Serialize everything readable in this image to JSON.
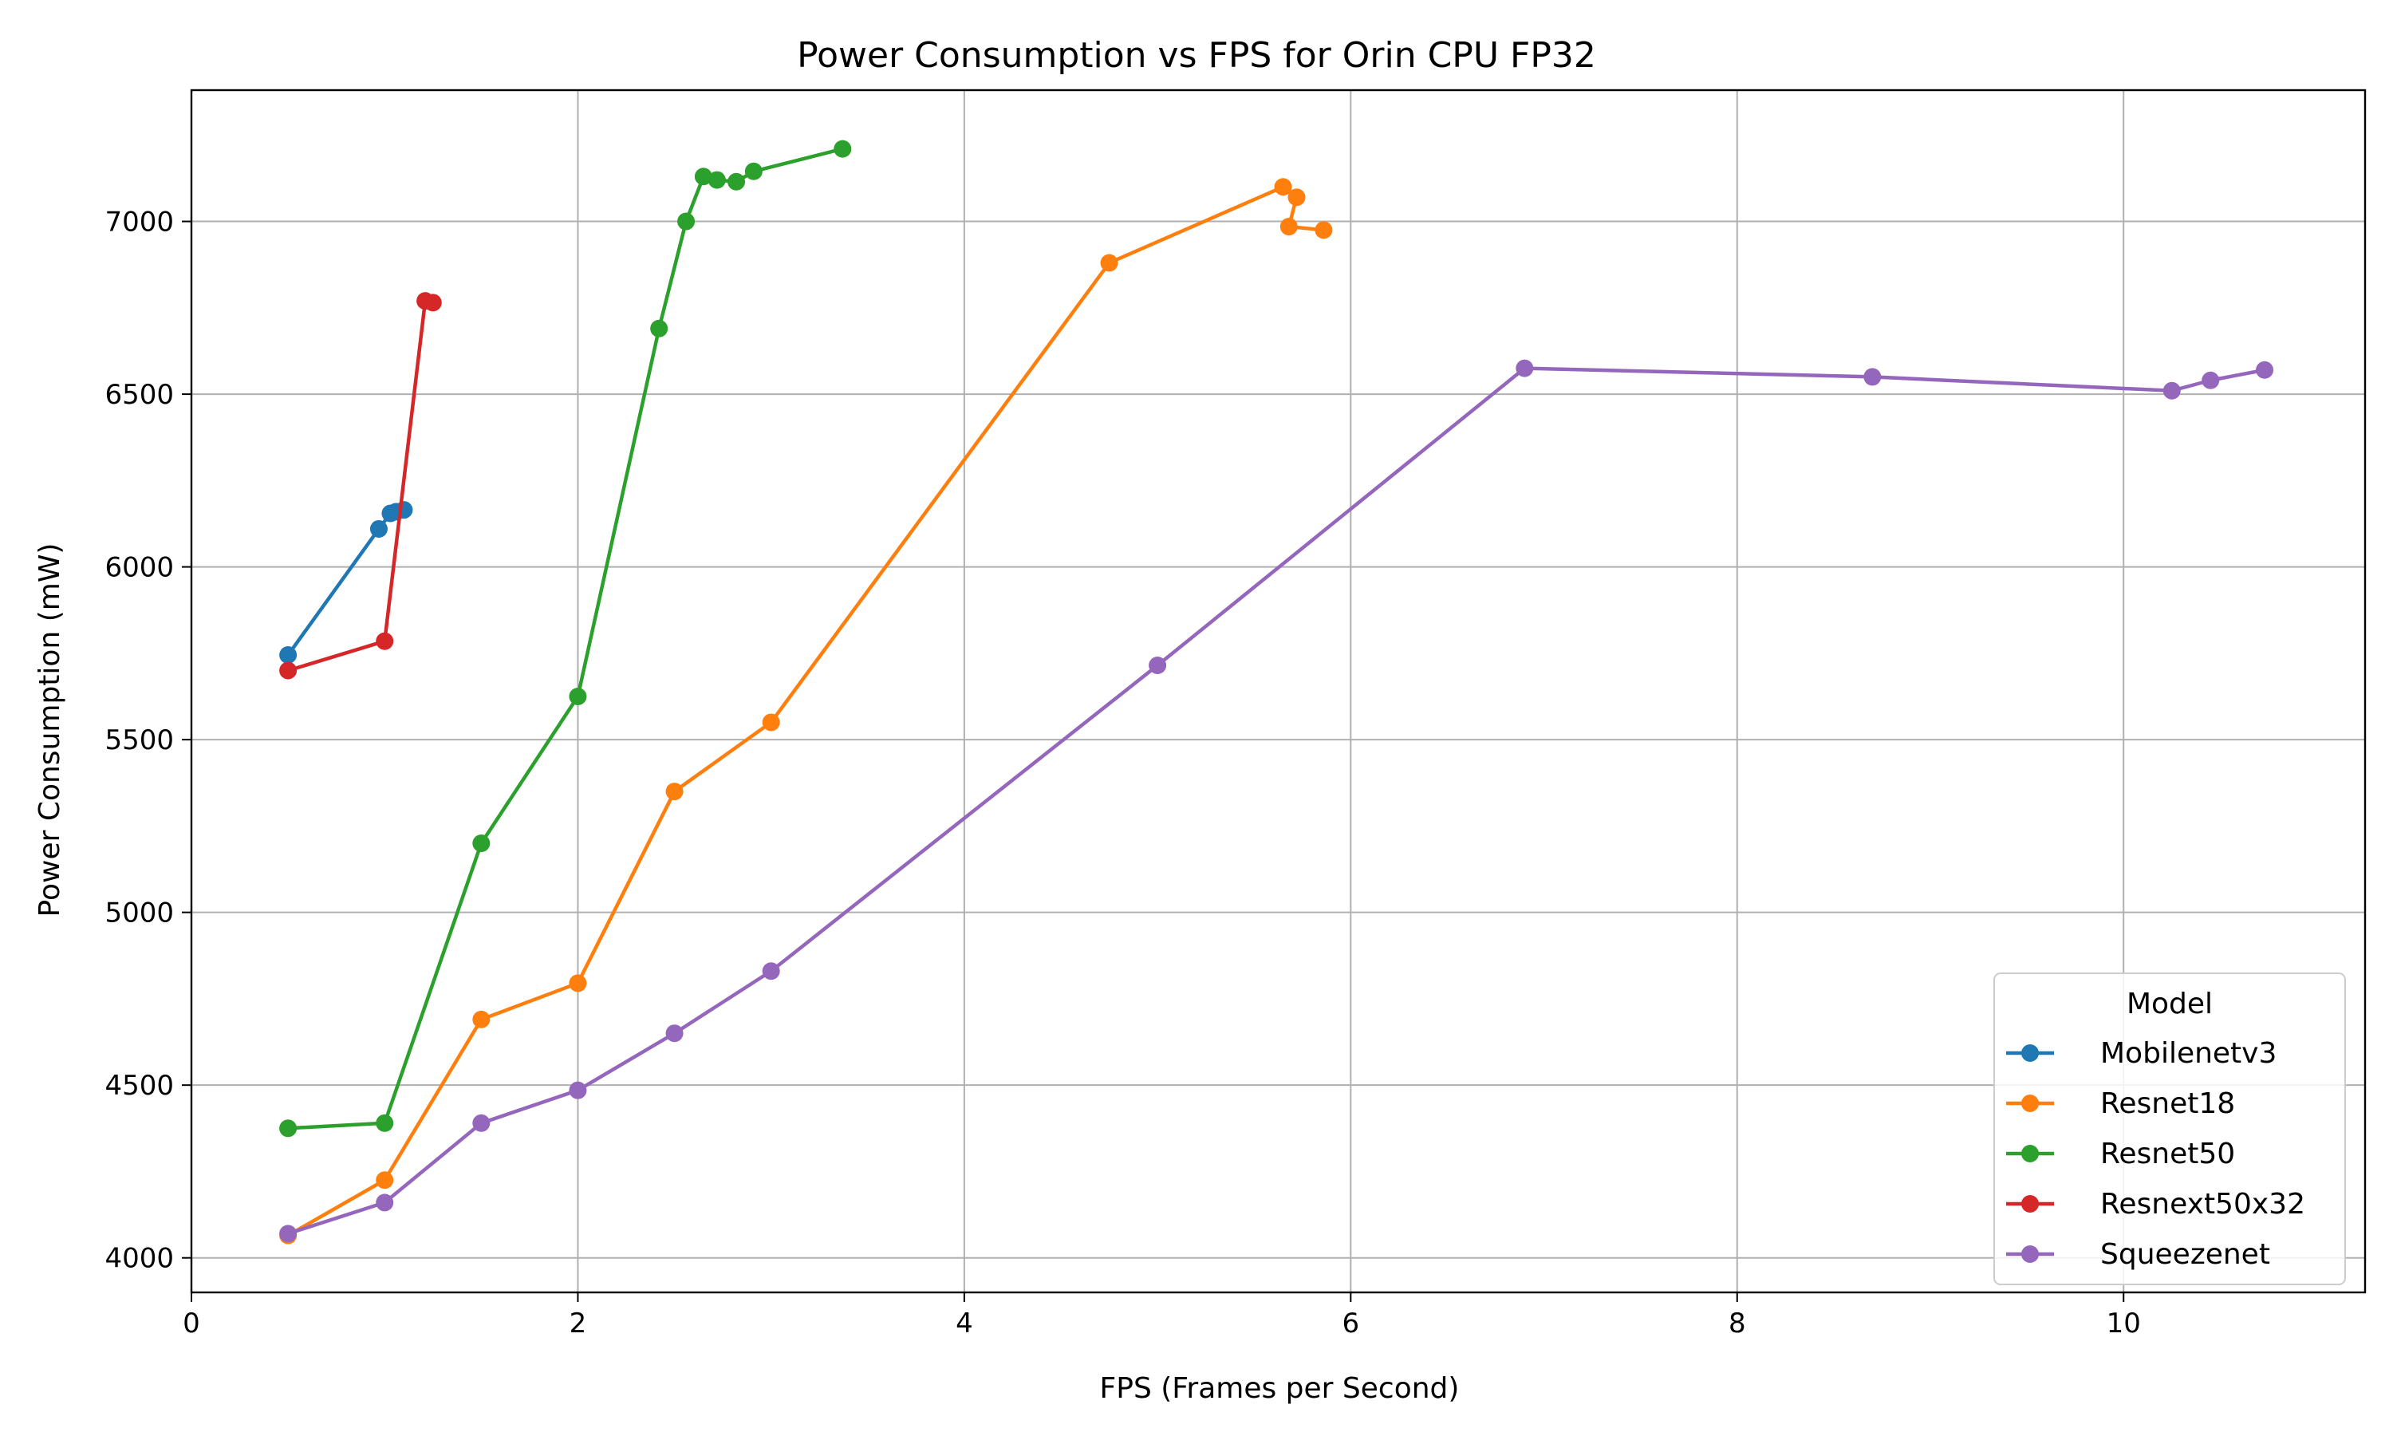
{
  "chart_data": {
    "type": "line",
    "title": "Power Consumption vs FPS for Orin CPU FP32",
    "xlabel": "FPS (Frames per Second)",
    "ylabel": "Power Consumption (mW)",
    "xlim": [
      0,
      11.25
    ],
    "ylim": [
      3900,
      7380
    ],
    "xticks": [
      0,
      2,
      4,
      6,
      8,
      10
    ],
    "yticks": [
      4000,
      4500,
      5000,
      5500,
      6000,
      6500,
      7000
    ],
    "grid": true,
    "legend": {
      "title": "Model",
      "placement": "lower right"
    },
    "series": [
      {
        "name": "Mobilenetv3",
        "color": "#1f77b4",
        "points": [
          [
            0.5,
            5745
          ],
          [
            0.97,
            6110
          ],
          [
            1.03,
            6155
          ],
          [
            1.06,
            6160
          ],
          [
            1.1,
            6165
          ]
        ]
      },
      {
        "name": "Resnet18",
        "color": "#ff7f0e",
        "points": [
          [
            0.5,
            4065
          ],
          [
            1.0,
            4225
          ],
          [
            1.5,
            4690
          ],
          [
            2.0,
            4795
          ],
          [
            2.5,
            5350
          ],
          [
            3.0,
            5550
          ],
          [
            4.75,
            6880
          ],
          [
            5.65,
            7100
          ],
          [
            5.72,
            7070
          ],
          [
            5.68,
            6985
          ],
          [
            5.86,
            6975
          ]
        ]
      },
      {
        "name": "Resnet50",
        "color": "#2ca02c",
        "points": [
          [
            0.5,
            4375
          ],
          [
            1.0,
            4390
          ],
          [
            1.5,
            5200
          ],
          [
            2.0,
            5625
          ],
          [
            2.42,
            6690
          ],
          [
            2.56,
            7000
          ],
          [
            2.65,
            7130
          ],
          [
            2.72,
            7120
          ],
          [
            2.82,
            7115
          ],
          [
            2.91,
            7145
          ],
          [
            3.37,
            7210
          ]
        ]
      },
      {
        "name": "Resnext50x32",
        "color": "#d62728",
        "points": [
          [
            0.5,
            5700
          ],
          [
            1.0,
            5785
          ],
          [
            1.21,
            6770
          ],
          [
            1.25,
            6765
          ]
        ]
      },
      {
        "name": "Squeezenet",
        "color": "#9467bd",
        "points": [
          [
            0.5,
            4070
          ],
          [
            1.0,
            4160
          ],
          [
            1.5,
            4390
          ],
          [
            2.0,
            4485
          ],
          [
            2.5,
            4650
          ],
          [
            3.0,
            4830
          ],
          [
            5.0,
            5715
          ],
          [
            6.9,
            6575
          ],
          [
            8.7,
            6550
          ],
          [
            10.25,
            6510
          ],
          [
            10.45,
            6540
          ],
          [
            10.73,
            6570
          ]
        ]
      }
    ]
  }
}
